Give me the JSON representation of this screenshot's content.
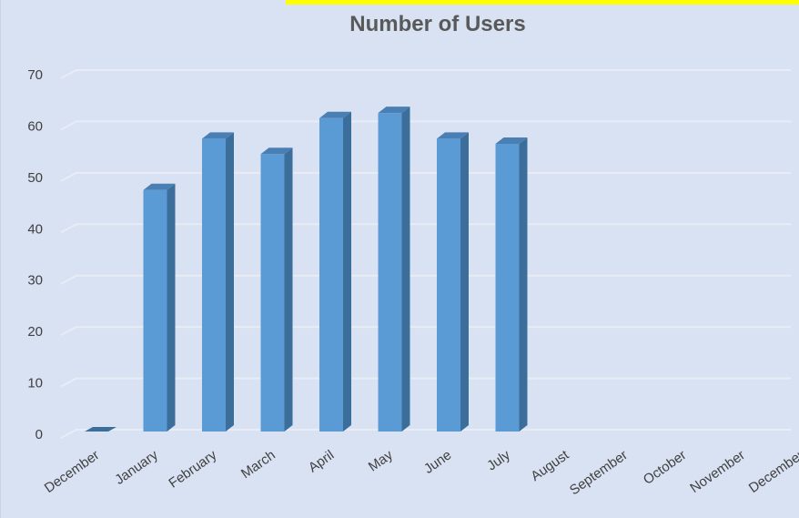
{
  "chart_data": {
    "type": "bar",
    "title": "Number of Users",
    "xlabel": "",
    "ylabel": "",
    "ylim": [
      0,
      70
    ],
    "yticks": [
      0,
      10,
      20,
      30,
      40,
      50,
      60,
      70
    ],
    "grid": true,
    "legend": "none",
    "bar_style": "3d",
    "categories": [
      "December",
      "January",
      "February",
      "March",
      "April",
      "May",
      "June",
      "July",
      "August",
      "September",
      "October",
      "November",
      "December"
    ],
    "values": [
      0,
      47,
      57,
      54,
      61,
      62,
      57,
      56,
      null,
      null,
      null,
      null,
      null
    ]
  },
  "colors": {
    "background": "#d9e2f3",
    "bar_front": "#5b9bd5",
    "bar_side": "#3c6e9c",
    "bar_top": "#4a7fb4",
    "gridline": "#e8ecf5",
    "highlight": "#ffff00"
  }
}
